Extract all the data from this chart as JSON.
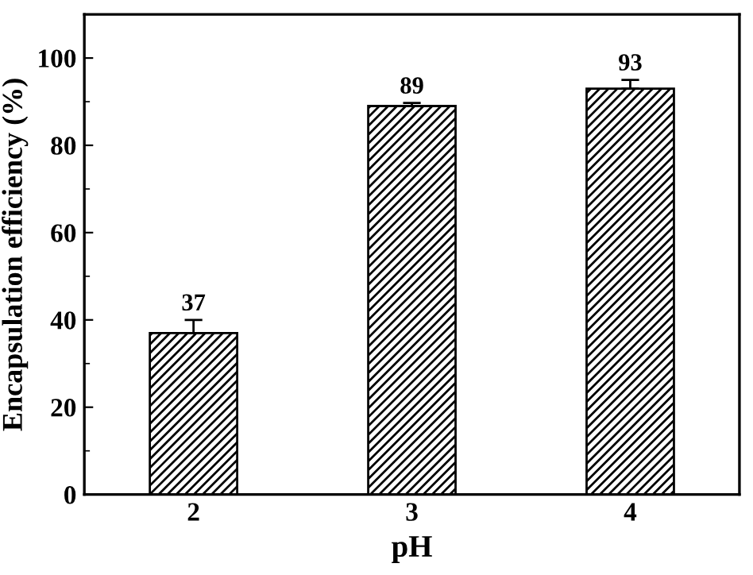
{
  "chart_data": {
    "type": "bar",
    "xlabel": "pH",
    "ylabel": "Encapsulation efficiency (%)",
    "categories": [
      "2",
      "3",
      "4"
    ],
    "values": [
      37,
      89,
      93
    ],
    "errors": [
      [
        37,
        40
      ],
      [
        89,
        89.7
      ],
      [
        93,
        95
      ]
    ],
    "ylim": [
      0,
      110
    ],
    "yticks": [
      0,
      20,
      40,
      60,
      80,
      100
    ],
    "data_labels": true,
    "grid": false,
    "legend": false
  }
}
